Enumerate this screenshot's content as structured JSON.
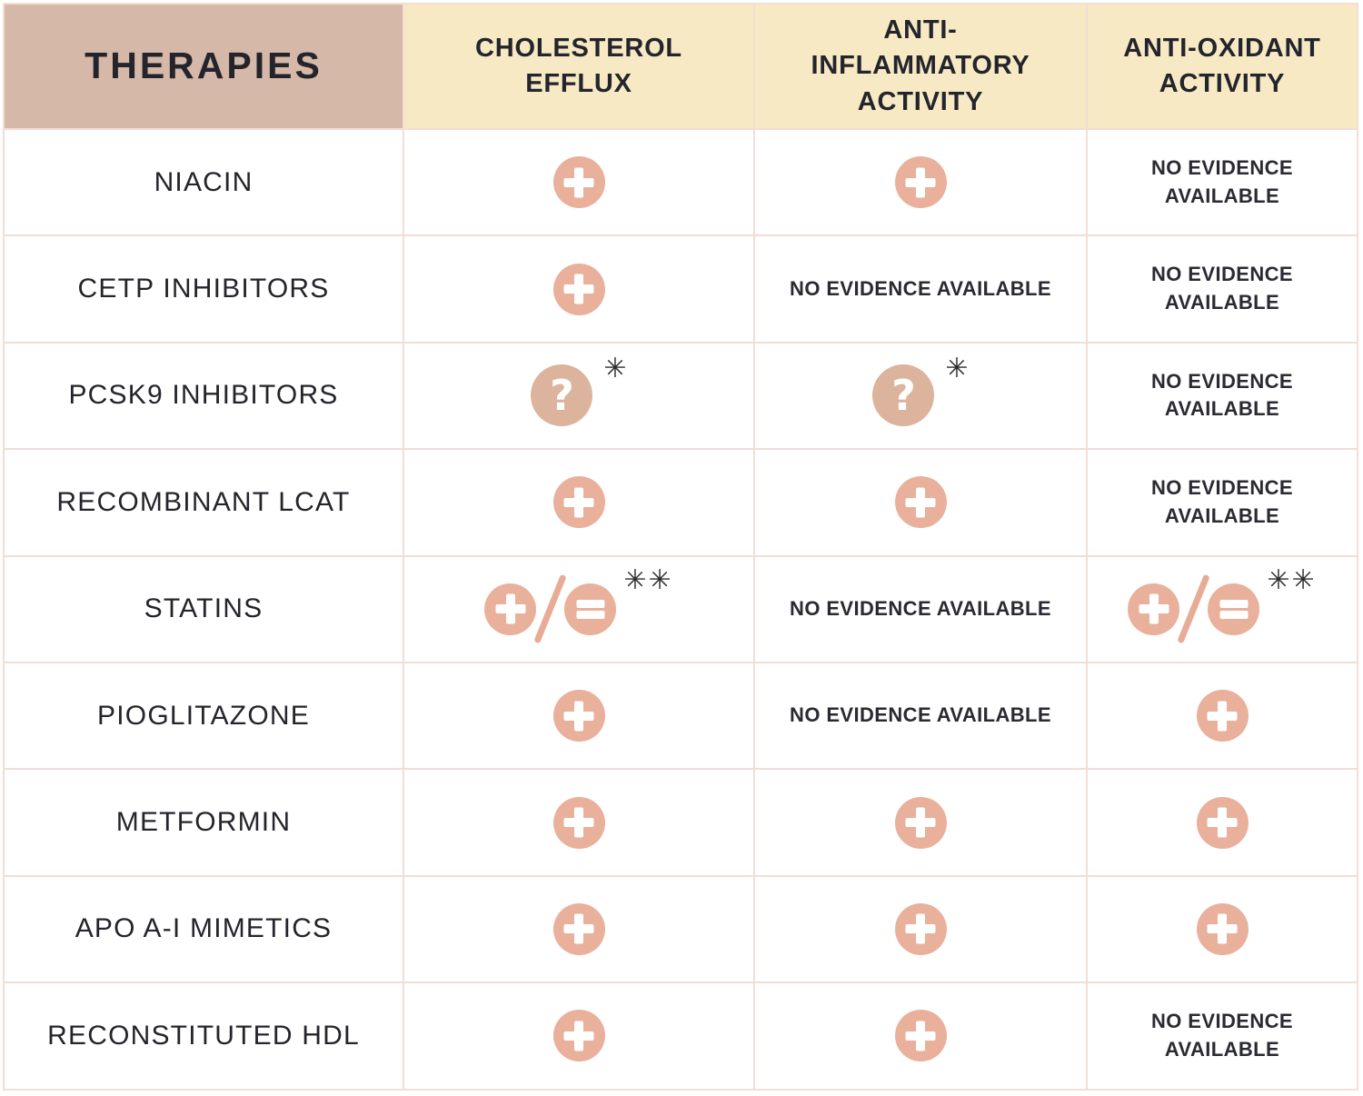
{
  "table": {
    "columns": [
      {
        "key": "therapies",
        "label": "THERAPIES"
      },
      {
        "key": "cholesterol_efflux",
        "label": "CHOLESTEROL EFFLUX"
      },
      {
        "key": "anti_inflammatory",
        "label": "ANTI-INFLAMMATORY ACTIVITY"
      },
      {
        "key": "anti_oxidant",
        "label": "ANTI-OXIDANT ACTIVITY"
      }
    ],
    "no_evidence_label": "NO EVIDENCE AVAILABLE",
    "rows": [
      {
        "therapy": "NIACIN",
        "cholesterol_efflux": "positive",
        "anti_inflammatory": "positive",
        "anti_oxidant": "no evidence available"
      },
      {
        "therapy": "CETP INHIBITORS",
        "cholesterol_efflux": "positive",
        "anti_inflammatory": "no evidence available",
        "anti_oxidant": "no evidence available"
      },
      {
        "therapy": "PCSK9 INHIBITORS",
        "cholesterol_efflux": "unknown (question mark) *",
        "anti_inflammatory": "unknown (question mark) *",
        "anti_oxidant": "no evidence available"
      },
      {
        "therapy": "RECOMBINANT LCAT",
        "cholesterol_efflux": "positive",
        "anti_inflammatory": "positive",
        "anti_oxidant": "no evidence available"
      },
      {
        "therapy": "STATINS",
        "cholesterol_efflux": "positive / neutral **",
        "anti_inflammatory": "no evidence available",
        "anti_oxidant": "positive / neutral **"
      },
      {
        "therapy": "PIOGLITAZONE",
        "cholesterol_efflux": "positive",
        "anti_inflammatory": "no evidence available",
        "anti_oxidant": "positive"
      },
      {
        "therapy": "METFORMIN",
        "cholesterol_efflux": "positive",
        "anti_inflammatory": "positive",
        "anti_oxidant": "positive"
      },
      {
        "therapy": "APO A-I MIMETICS",
        "cholesterol_efflux": "positive",
        "anti_inflammatory": "positive",
        "anti_oxidant": "positive"
      },
      {
        "therapy": "RECONSTITUTED HDL",
        "cholesterol_efflux": "positive",
        "anti_inflammatory": "positive",
        "anti_oxidant": "no evidence available"
      }
    ]
  },
  "icons": {
    "plus_icon_meaning": "positive effect",
    "equals_icon_meaning": "neutral effect",
    "question_icon_meaning": "unknown effect",
    "question_glyph": "?",
    "single_asterisk": "✳",
    "double_asterisk": "✳✳"
  },
  "colors": {
    "therapies_header_bg": "#d5b8a7",
    "column_header_bg": "#f6e9c3",
    "plus_equals_circle": "#e9b09b",
    "question_circle": "#dcb49d",
    "slash": "#e8ab96",
    "border": "#f1ded4",
    "text": "#24242c"
  }
}
